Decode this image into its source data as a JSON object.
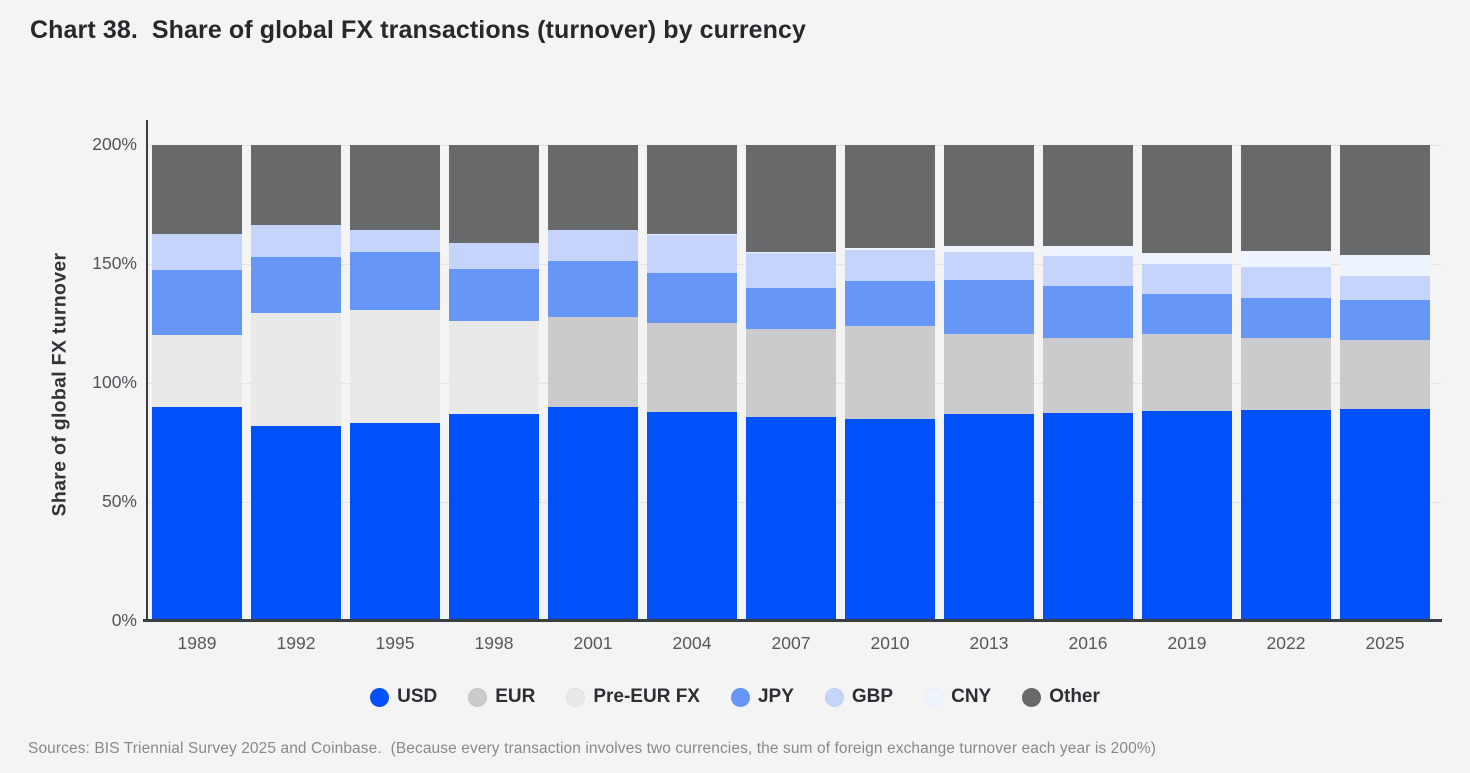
{
  "title": {
    "prefix": "Chart 38.",
    "text": "Share of global FX transactions (turnover) by currency"
  },
  "y_axis": {
    "label": "Share of global FX turnover",
    "ticks": [
      {
        "value": 200,
        "label": "200%"
      },
      {
        "value": 150,
        "label": "150%"
      },
      {
        "value": 100,
        "label": "100%"
      },
      {
        "value": 50,
        "label": "50%"
      },
      {
        "value": 0,
        "label": "0%"
      }
    ]
  },
  "source_note": "Sources: BIS Triennial Survey 2025 and Coinbase.  (Because every transaction involves two currencies, the sum of foreign exchange turnover each year is 200%)",
  "colors": {
    "usd": "#0151fb",
    "eur": "#cbcbcd",
    "pre_eur": "#e9e9e8",
    "jpy": "#6697f7",
    "gbp": "#c5d4fa",
    "cny": "#eef4fd",
    "other": "#67696b",
    "background": "#f4f4f5",
    "gridline": "#e3e4e6",
    "axis": "#3a3d41"
  },
  "chart_data": {
    "type": "bar",
    "stacked": true,
    "title": "Chart 38. Share of global FX transactions (turnover) by currency",
    "xlabel": "",
    "ylabel": "Share of global FX turnover",
    "ylim": [
      0,
      200
    ],
    "yticks": [
      0,
      50,
      100,
      150,
      200
    ],
    "grid": true,
    "legend_position": "bottom",
    "categories": [
      "1989",
      "1992",
      "1995",
      "1998",
      "2001",
      "2004",
      "2007",
      "2010",
      "2013",
      "2016",
      "2019",
      "2022",
      "2025"
    ],
    "series": [
      {
        "name": "USD",
        "color_key": "usd",
        "values": [
          90.0,
          82.0,
          83.3,
          86.8,
          89.9,
          88.0,
          85.6,
          84.9,
          87.0,
          87.6,
          88.3,
          88.5,
          89.2
        ]
      },
      {
        "name": "EUR",
        "color_key": "eur",
        "values": [
          0,
          0,
          0,
          0,
          37.9,
          37.4,
          37.0,
          39.1,
          33.4,
          31.4,
          32.3,
          30.5,
          28.9
        ]
      },
      {
        "name": "Pre-EUR FX",
        "color_key": "pre_eur",
        "values": [
          30.0,
          47.5,
          47.5,
          39.2,
          0,
          0,
          0,
          0,
          0,
          0,
          0,
          0,
          0
        ]
      },
      {
        "name": "JPY",
        "color_key": "jpy",
        "values": [
          27.5,
          23.4,
          24.1,
          21.7,
          23.5,
          20.8,
          17.2,
          19.0,
          23.0,
          21.6,
          16.8,
          16.7,
          16.8
        ]
      },
      {
        "name": "GBP",
        "color_key": "gbp",
        "values": [
          15.0,
          13.6,
          9.4,
          11.0,
          13.0,
          16.5,
          14.9,
          12.9,
          11.8,
          12.8,
          12.8,
          12.9,
          10.2
        ]
      },
      {
        "name": "CNY",
        "color_key": "cny",
        "values": [
          0,
          0,
          0,
          0,
          0,
          0.1,
          0.5,
          0.9,
          2.2,
          4.0,
          4.3,
          7.0,
          8.5
        ]
      },
      {
        "name": "Other",
        "color_key": "other",
        "values": [
          37.5,
          33.5,
          35.7,
          41.3,
          35.7,
          37.2,
          44.8,
          43.2,
          42.6,
          42.6,
          45.5,
          44.4,
          46.4
        ]
      }
    ]
  },
  "legend": {
    "items": [
      "USD",
      "EUR",
      "Pre-EUR FX",
      "JPY",
      "GBP",
      "CNY",
      "Other"
    ]
  }
}
